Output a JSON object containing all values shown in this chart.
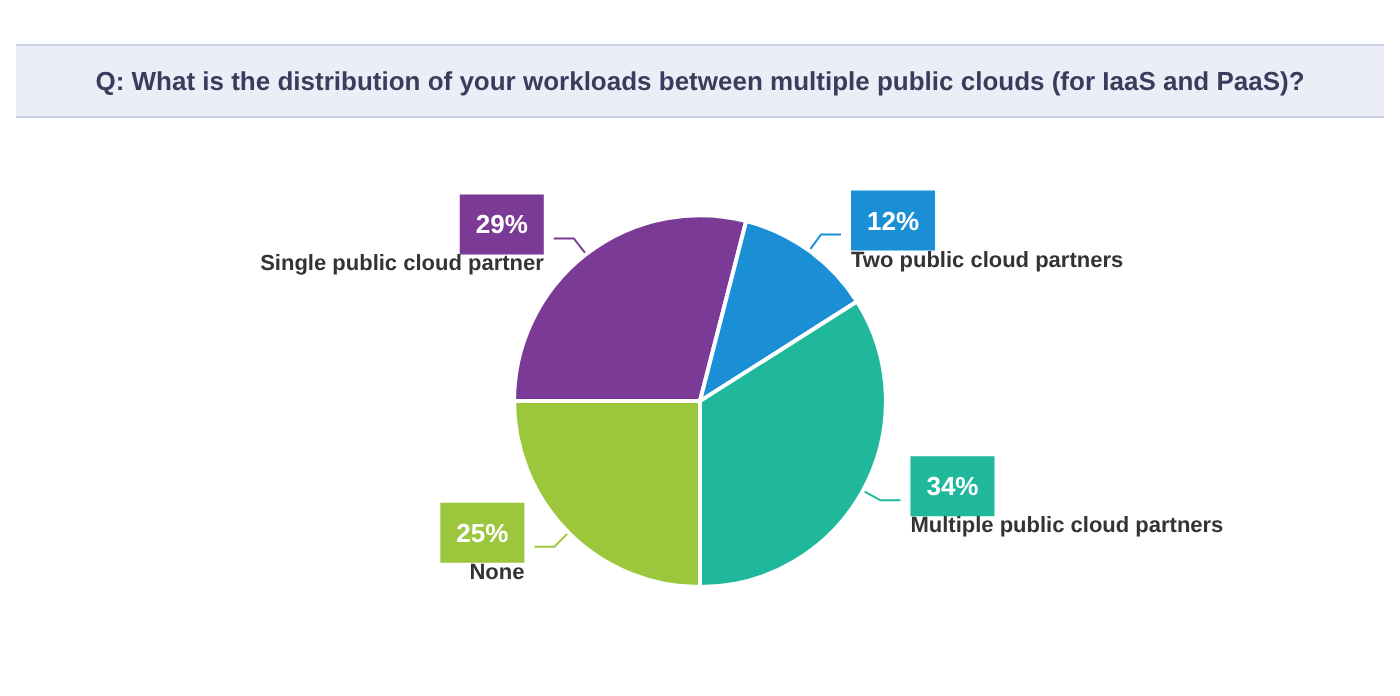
{
  "chart_data": {
    "type": "pie",
    "title": "Q: What is the distribution of your workloads between multiple public clouds (for IaaS and PaaS)?",
    "categories": [
      "Single public cloud partner",
      "Two public cloud partners",
      "Multiple public cloud partners",
      "None"
    ],
    "values": [
      29,
      12,
      34,
      25
    ],
    "value_labels": [
      "29%",
      "12%",
      "34%",
      "25%"
    ],
    "colors": [
      "#7b3a96",
      "#1a8fd6",
      "#1fb89a",
      "#9cc63b"
    ]
  }
}
